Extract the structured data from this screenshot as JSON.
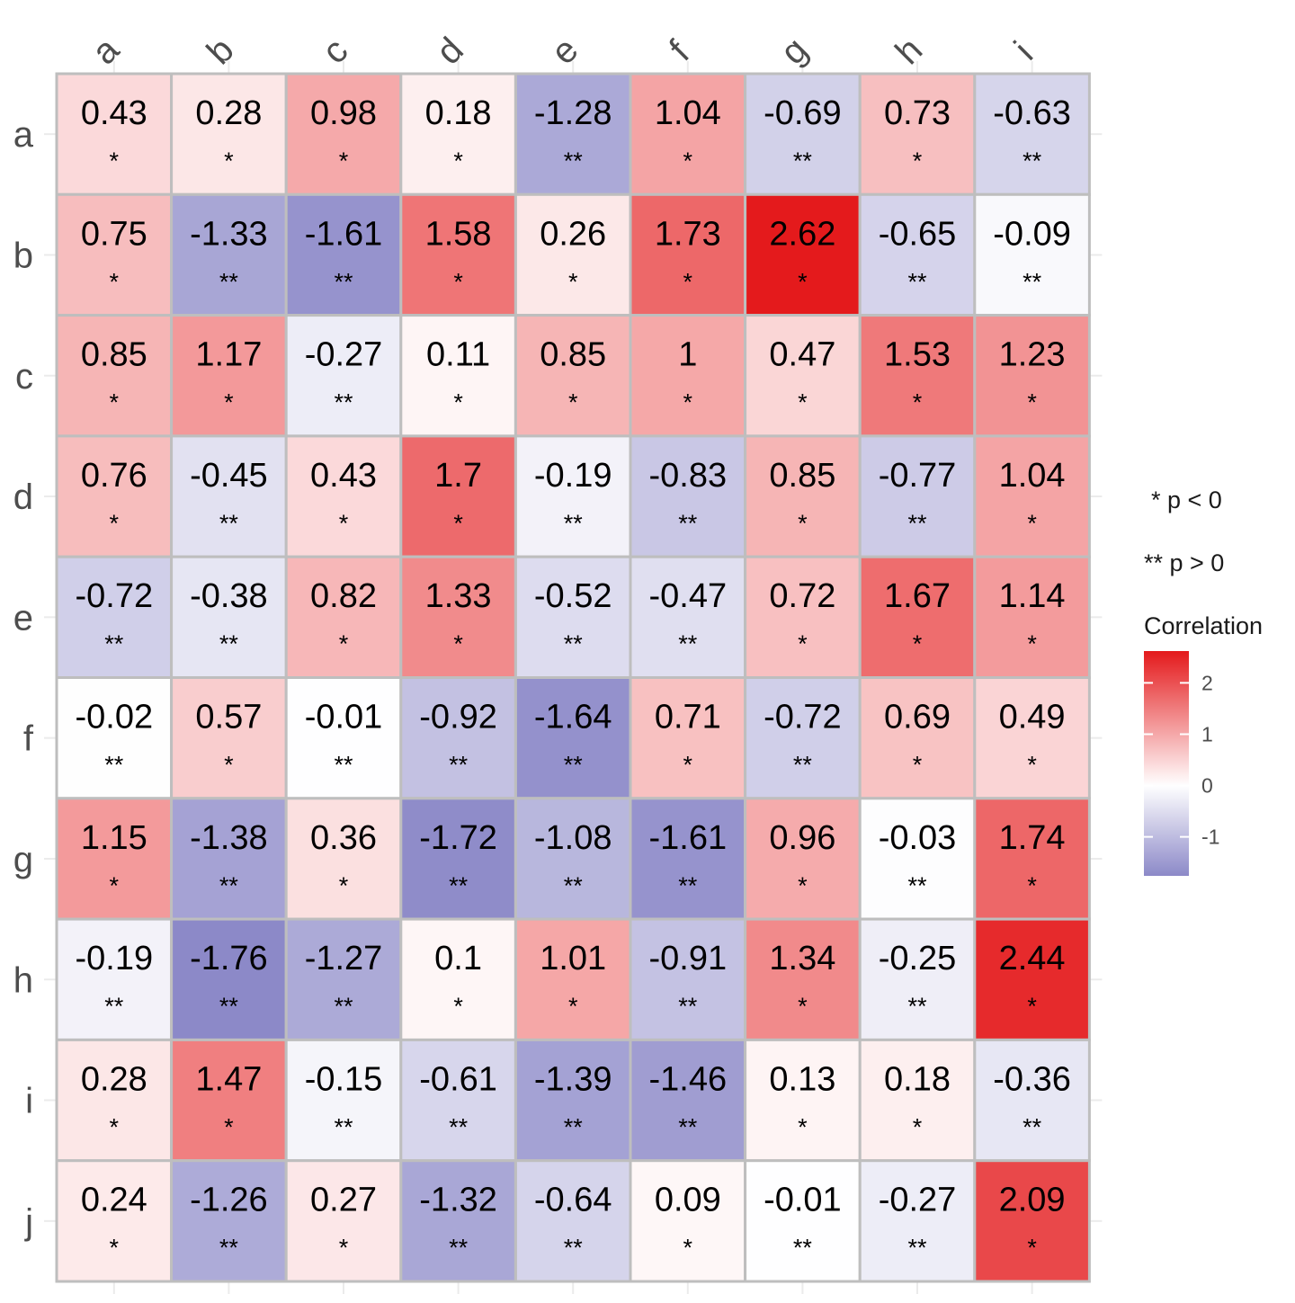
{
  "chart_data": {
    "type": "heatmap",
    "title": "",
    "xlabel": "",
    "ylabel": "",
    "columns": [
      "a",
      "b",
      "c",
      "d",
      "e",
      "f",
      "g",
      "h",
      "i"
    ],
    "rows": [
      "a",
      "b",
      "c",
      "d",
      "e",
      "f",
      "g",
      "h",
      "i",
      "j"
    ],
    "values": [
      [
        0.43,
        0.28,
        0.98,
        0.18,
        -1.28,
        1.04,
        -0.69,
        0.73,
        -0.63
      ],
      [
        0.75,
        -1.33,
        -1.61,
        1.58,
        0.26,
        1.73,
        2.62,
        -0.65,
        -0.09
      ],
      [
        0.85,
        1.17,
        -0.27,
        0.11,
        0.85,
        1,
        0.47,
        1.53,
        1.23
      ],
      [
        0.76,
        -0.45,
        0.43,
        1.7,
        -0.19,
        -0.83,
        0.85,
        -0.77,
        1.04
      ],
      [
        -0.72,
        -0.38,
        0.82,
        1.33,
        -0.52,
        -0.47,
        0.72,
        1.67,
        1.14
      ],
      [
        -0.02,
        0.57,
        -0.01,
        -0.92,
        -1.64,
        0.71,
        -0.72,
        0.69,
        0.49
      ],
      [
        1.15,
        -1.38,
        0.36,
        -1.72,
        -1.08,
        -1.61,
        0.96,
        -0.03,
        1.74
      ],
      [
        -0.19,
        -1.76,
        -1.27,
        0.1,
        1.01,
        -0.91,
        1.34,
        -0.25,
        2.44
      ],
      [
        0.28,
        1.47,
        -0.15,
        -0.61,
        -1.39,
        -1.46,
        0.13,
        0.18,
        -0.36
      ],
      [
        0.24,
        -1.26,
        0.27,
        -1.32,
        -0.64,
        0.09,
        -0.01,
        -0.27,
        2.09
      ]
    ],
    "significance": [
      [
        "*",
        "*",
        "*",
        "*",
        "**",
        "*",
        "**",
        "*",
        "**"
      ],
      [
        "*",
        "**",
        "**",
        "*",
        "*",
        "*",
        "*",
        "**",
        "**"
      ],
      [
        "*",
        "*",
        "**",
        "*",
        "*",
        "*",
        "*",
        "*",
        "*"
      ],
      [
        "*",
        "**",
        "*",
        "*",
        "**",
        "**",
        "*",
        "**",
        "*"
      ],
      [
        "**",
        "**",
        "*",
        "*",
        "**",
        "**",
        "*",
        "*",
        "*"
      ],
      [
        "**",
        "*",
        "**",
        "**",
        "**",
        "*",
        "**",
        "*",
        "*"
      ],
      [
        "*",
        "**",
        "*",
        "**",
        "**",
        "**",
        "*",
        "**",
        "*"
      ],
      [
        "**",
        "**",
        "**",
        "*",
        "*",
        "**",
        "*",
        "**",
        "*"
      ],
      [
        "*",
        "*",
        "**",
        "**",
        "**",
        "**",
        "*",
        "*",
        "**"
      ],
      [
        "*",
        "**",
        "*",
        "**",
        "**",
        "*",
        "**",
        "**",
        "*"
      ]
    ],
    "color_scale": {
      "low": "#8c89c8",
      "mid": "#ffffff",
      "high": "#e41a1c",
      "range": [
        -1.76,
        2.62
      ]
    },
    "legend": {
      "placement": "right",
      "notes": [
        "* p < 0",
        "** p > 0"
      ],
      "title": "Correlation",
      "ticks": [
        "2",
        "1",
        "0",
        "-1"
      ]
    }
  }
}
